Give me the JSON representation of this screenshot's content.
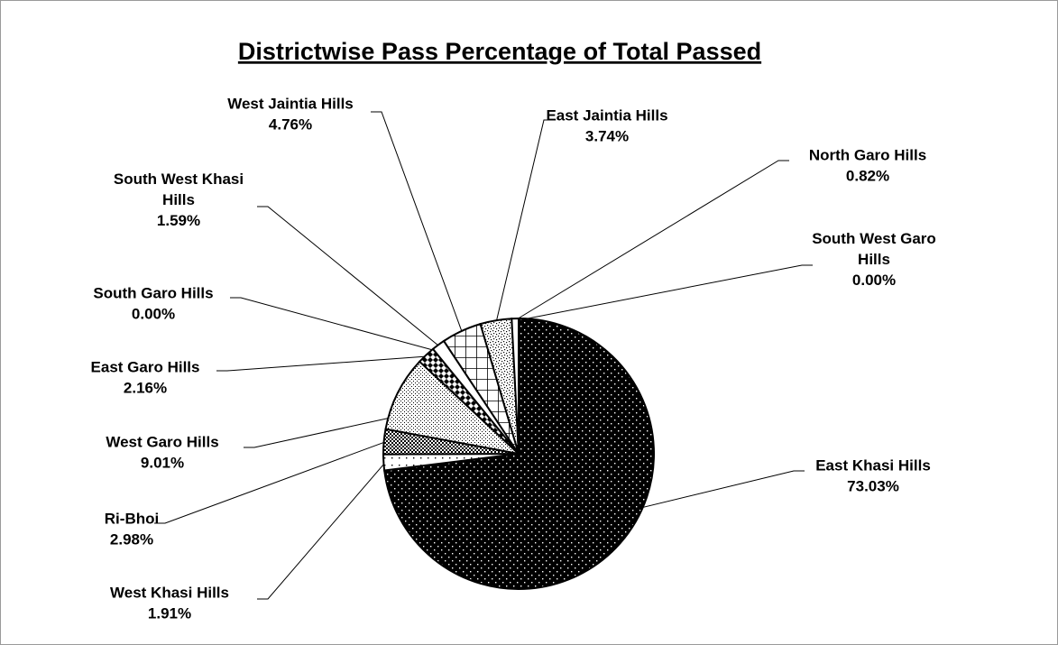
{
  "chart_data": {
    "type": "pie",
    "title": "Districtwise Pass Percentage of Total Passed",
    "slices": [
      {
        "name": "East Khasi Hills",
        "value": 73.03,
        "value_label": "73.03%",
        "pattern": "dots-on-black"
      },
      {
        "name": "West Khasi Hills",
        "value": 1.91,
        "value_label": "1.91%",
        "pattern": "sparse-dots"
      },
      {
        "name": "Ri-Bhoi",
        "value": 2.98,
        "value_label": "2.98%",
        "pattern": "dense-checker"
      },
      {
        "name": "West Garo Hills",
        "value": 9.01,
        "value_label": "9.01%",
        "pattern": "fine-dots"
      },
      {
        "name": "East Garo Hills",
        "value": 2.16,
        "value_label": "2.16%",
        "pattern": "diamond"
      },
      {
        "name": "South Garo Hills",
        "value": 0.0,
        "value_label": "0.00%",
        "pattern": "white"
      },
      {
        "name": "South West Khasi Hills",
        "value": 1.59,
        "value_label": "1.59%",
        "pattern": "white"
      },
      {
        "name": "West Jaintia Hills",
        "value": 4.76,
        "value_label": "4.76%",
        "pattern": "grid"
      },
      {
        "name": "East Jaintia Hills",
        "value": 3.74,
        "value_label": "3.74%",
        "pattern": "stipple"
      },
      {
        "name": "North Garo Hills",
        "value": 0.82,
        "value_label": "0.82%",
        "pattern": "white"
      },
      {
        "name": "South West Garo Hills",
        "value": 0.0,
        "value_label": "0.00%",
        "pattern": "white"
      }
    ],
    "legend": "none"
  }
}
